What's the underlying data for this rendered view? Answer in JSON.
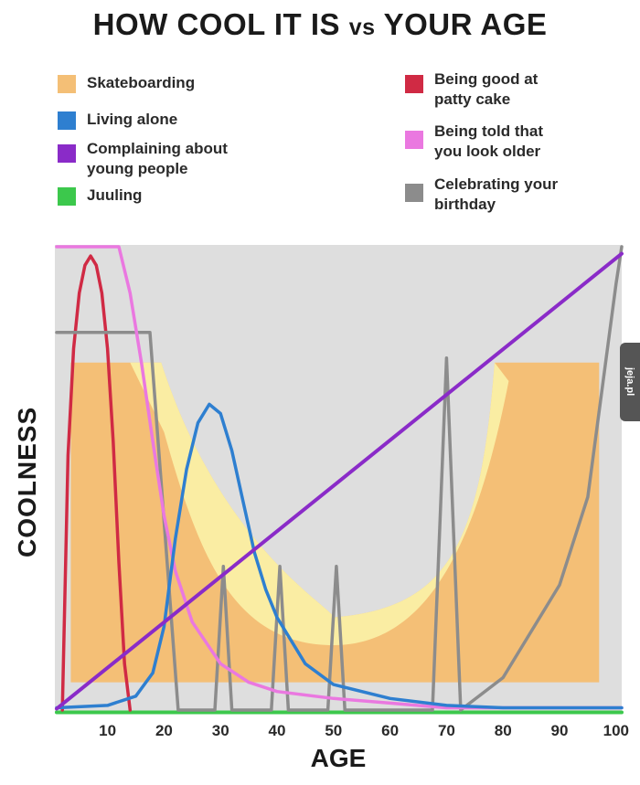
{
  "title": {
    "part1": "HOW COOL IT IS",
    "vs": "vs",
    "part2": "YOUR AGE"
  },
  "legend": [
    {
      "label": "Skateboarding",
      "color": "#f4bf76"
    },
    {
      "label": "Living alone",
      "color": "#2e7fd0"
    },
    {
      "label": "Complaining about\nyoung people",
      "color": "#8a2bc8"
    },
    {
      "label": "Juuling",
      "color": "#3cc84c"
    },
    {
      "label": "Being good at\npatty cake",
      "color": "#d02a44"
    },
    {
      "label": "Being told that\nyou look older",
      "color": "#ea78e0"
    },
    {
      "label": "Celebrating your\nbirthday",
      "color": "#8c8c8c"
    }
  ],
  "watermark": "jeja.pl",
  "chart_data": {
    "type": "line",
    "xlabel": "AGE",
    "ylabel": "COOLNESS",
    "xticks": [
      "10",
      "20",
      "30",
      "40",
      "50",
      "60",
      "70",
      "80",
      "90",
      "100"
    ],
    "xlim": [
      1,
      101
    ],
    "ylim": [
      0,
      100
    ],
    "background": "#dedede",
    "series": [
      {
        "name": "Skateboarding",
        "color": "#f4bf76",
        "style": "halfpipe",
        "x": [
          3.5,
          19.5,
          30,
          50,
          78.5,
          97
        ],
        "y": [
          75,
          75,
          35,
          20,
          75,
          75
        ]
      },
      {
        "name": "Living alone",
        "color": "#2e7fd0",
        "x": [
          1,
          10,
          15,
          18,
          20,
          22,
          24,
          26,
          28,
          30,
          32,
          34,
          36,
          38,
          40,
          45,
          50,
          60,
          70,
          80,
          90,
          101
        ],
        "y": [
          0.5,
          1,
          3,
          8,
          18,
          37,
          52,
          62,
          66,
          64,
          56,
          45,
          34,
          26,
          20,
          10,
          5.5,
          2.5,
          1,
          0.5,
          0.5,
          0.5
        ]
      },
      {
        "name": "Complaining about young people",
        "color": "#8a2bc8",
        "x": [
          1,
          101
        ],
        "y": [
          0.3,
          98.5
        ]
      },
      {
        "name": "Juuling",
        "color": "#3cc84c",
        "x": [
          1,
          101
        ],
        "y": [
          -0.5,
          -0.5
        ]
      },
      {
        "name": "Being good at patty cake",
        "color": "#d02a44",
        "x": [
          2,
          3,
          4,
          5,
          6,
          7,
          8,
          9,
          10,
          11,
          12,
          13,
          14
        ],
        "y": [
          0,
          55,
          78,
          90,
          96,
          98,
          96,
          90,
          78,
          58,
          32,
          10,
          0
        ]
      },
      {
        "name": "Being told that you look older",
        "color": "#ea78e0",
        "x": [
          1,
          12,
          14,
          16,
          18,
          20,
          22,
          25,
          30,
          35,
          40,
          50,
          60,
          70,
          101
        ],
        "y": [
          100,
          100,
          90,
          75,
          58,
          42,
          30,
          19,
          10,
          6,
          4,
          2.5,
          1.5,
          0.5,
          0.5
        ]
      },
      {
        "name": "Celebrating your birthday",
        "color": "#8c8c8c",
        "x": [
          1,
          17.5,
          22.5,
          29,
          30.5,
          32,
          39,
          40.5,
          42,
          49,
          50.5,
          52,
          67.5,
          70,
          72.5,
          80,
          90,
          95,
          100,
          101
        ],
        "y": [
          81.5,
          81.5,
          0,
          0,
          31,
          0,
          0,
          31,
          0,
          0,
          31,
          0,
          0,
          76,
          0,
          7,
          27,
          46,
          92,
          100
        ]
      }
    ]
  }
}
